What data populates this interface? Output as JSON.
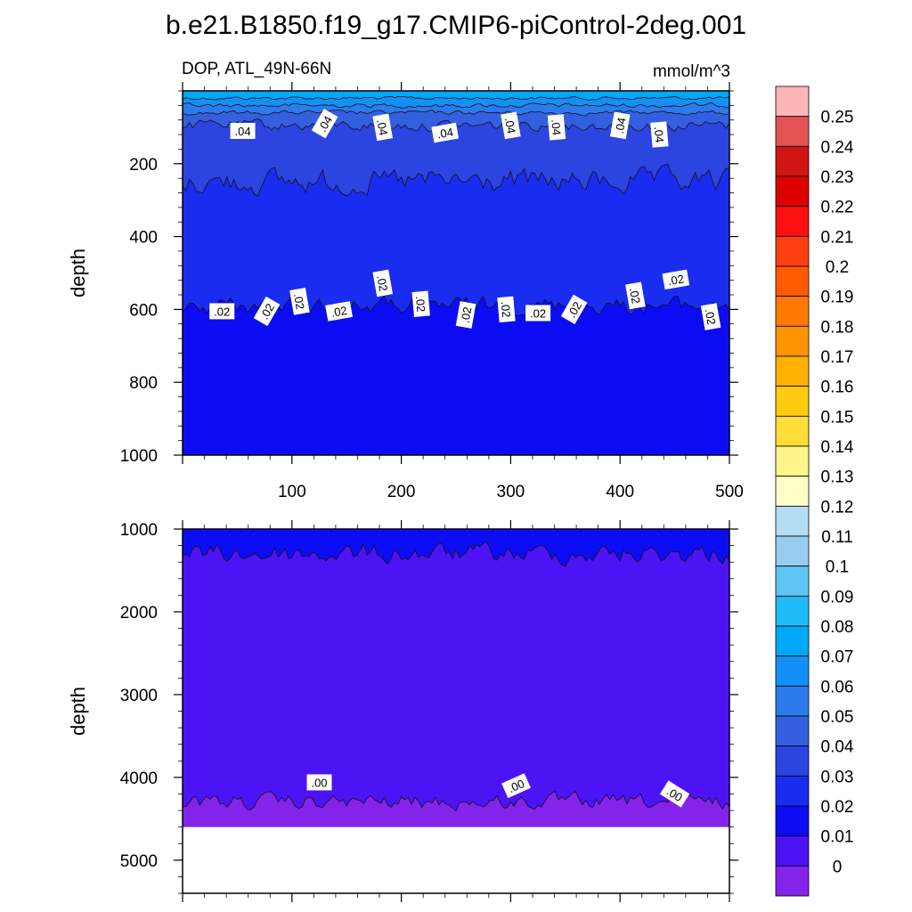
{
  "title": "b.e21.B1850.f19_g17.CMIP6-piControl-2deg.001",
  "subtitle_left": "DOP, ATL_49N-66N",
  "subtitle_right": "mmol/m^3",
  "chart_data": [
    {
      "type": "contour",
      "panel": "upper",
      "variable": "DOP",
      "region": "ATL_49N-66N",
      "units": "mmol/m^3",
      "xlabel": "",
      "ylabel": "depth",
      "xlim": [
        0,
        500
      ],
      "ylim": [
        1000,
        0
      ],
      "x_ticks": [
        100,
        200,
        300,
        400,
        500
      ],
      "y_ticks": [
        200,
        400,
        600,
        800,
        1000
      ],
      "bands": [
        {
          "range": "0.07-0.08",
          "top_depth": 0,
          "bottom_depth": 20
        },
        {
          "range": "0.06-0.07",
          "top_depth": 20,
          "bottom_depth": 40
        },
        {
          "range": "0.05-0.06",
          "top_depth": 40,
          "bottom_depth": 60
        },
        {
          "range": "0.04-0.05",
          "top_depth": 60,
          "bottom_depth": 95
        },
        {
          "range": "0.03-0.04",
          "top_depth": 95,
          "bottom_depth": 250
        },
        {
          "range": "0.02-0.03",
          "top_depth": 250,
          "bottom_depth": 590
        },
        {
          "range": "0.01-0.02",
          "top_depth": 590,
          "bottom_depth": 1000
        }
      ],
      "contour_labels": [
        {
          "text": ".04",
          "x": 55,
          "depth": 110
        },
        {
          "text": ".04",
          "x": 130,
          "depth": 90
        },
        {
          "text": ".04",
          "x": 183,
          "depth": 100
        },
        {
          "text": ".04",
          "x": 240,
          "depth": 115
        },
        {
          "text": ".04",
          "x": 300,
          "depth": 95
        },
        {
          "text": ".04",
          "x": 342,
          "depth": 100
        },
        {
          "text": ".04",
          "x": 400,
          "depth": 95
        },
        {
          "text": ".04",
          "x": 436,
          "depth": 120
        },
        {
          "text": ".02",
          "x": 36,
          "depth": 605
        },
        {
          "text": ".02",
          "x": 77,
          "depth": 605
        },
        {
          "text": ".02",
          "x": 107,
          "depth": 578
        },
        {
          "text": ".02",
          "x": 143,
          "depth": 605
        },
        {
          "text": ".02",
          "x": 183,
          "depth": 528
        },
        {
          "text": ".02",
          "x": 218,
          "depth": 585
        },
        {
          "text": ".02",
          "x": 259,
          "depth": 615
        },
        {
          "text": ".02",
          "x": 296,
          "depth": 600
        },
        {
          "text": ".02",
          "x": 325,
          "depth": 610
        },
        {
          "text": ".02",
          "x": 358,
          "depth": 600
        },
        {
          "text": ".02",
          "x": 414,
          "depth": 562
        },
        {
          "text": ".02",
          "x": 451,
          "depth": 518
        },
        {
          "text": ".02",
          "x": 483,
          "depth": 620
        }
      ]
    },
    {
      "type": "contour",
      "panel": "lower",
      "xlabel": "",
      "ylabel": "depth",
      "xlim": [
        0,
        500
      ],
      "ylim": [
        5400,
        1000
      ],
      "y_ticks": [
        1000,
        2000,
        3000,
        4000,
        5000
      ],
      "bands": [
        {
          "range": "0.01-0.02",
          "top_depth": 1000,
          "bottom_depth": 1300
        },
        {
          "range": "0-0.01",
          "top_depth": 1300,
          "bottom_depth": 4300
        },
        {
          "range": "<0",
          "top_depth": 4300,
          "bottom_depth": 4600
        }
      ],
      "no_data_below_depth": 4600,
      "contour_labels": [
        {
          "text": ".00",
          "x": 125,
          "depth": 4060
        },
        {
          "text": ".00",
          "x": 305,
          "depth": 4100
        },
        {
          "text": ".00",
          "x": 450,
          "depth": 4200
        }
      ]
    }
  ],
  "colorbar": {
    "labels": [
      "0.25",
      "0.24",
      "0.23",
      "0.22",
      "0.21",
      "0.2",
      "0.19",
      "0.18",
      "0.17",
      "0.16",
      "0.15",
      "0.14",
      "0.13",
      "0.12",
      "0.11",
      "0.1",
      "0.09",
      "0.08",
      "0.07",
      "0.06",
      "0.05",
      "0.04",
      "0.03",
      "0.02",
      "0.01",
      "0"
    ],
    "colors": [
      "#fdb6b6",
      "#e25353",
      "#d11515",
      "#de0000",
      "#ff1010",
      "#ff3e12",
      "#ff5a00",
      "#ff7a00",
      "#ff9400",
      "#ffb000",
      "#ffca10",
      "#ffde38",
      "#fff58a",
      "#ffffc8",
      "#b4dcf2",
      "#96cdf0",
      "#5ec6f4",
      "#1ebcf8",
      "#00a8f8",
      "#1490f4",
      "#2c7aec",
      "#3460e0",
      "#2c44e0",
      "#1a2cf0",
      "#0c0cf4",
      "#4c14f4",
      "#8424ea"
    ]
  }
}
